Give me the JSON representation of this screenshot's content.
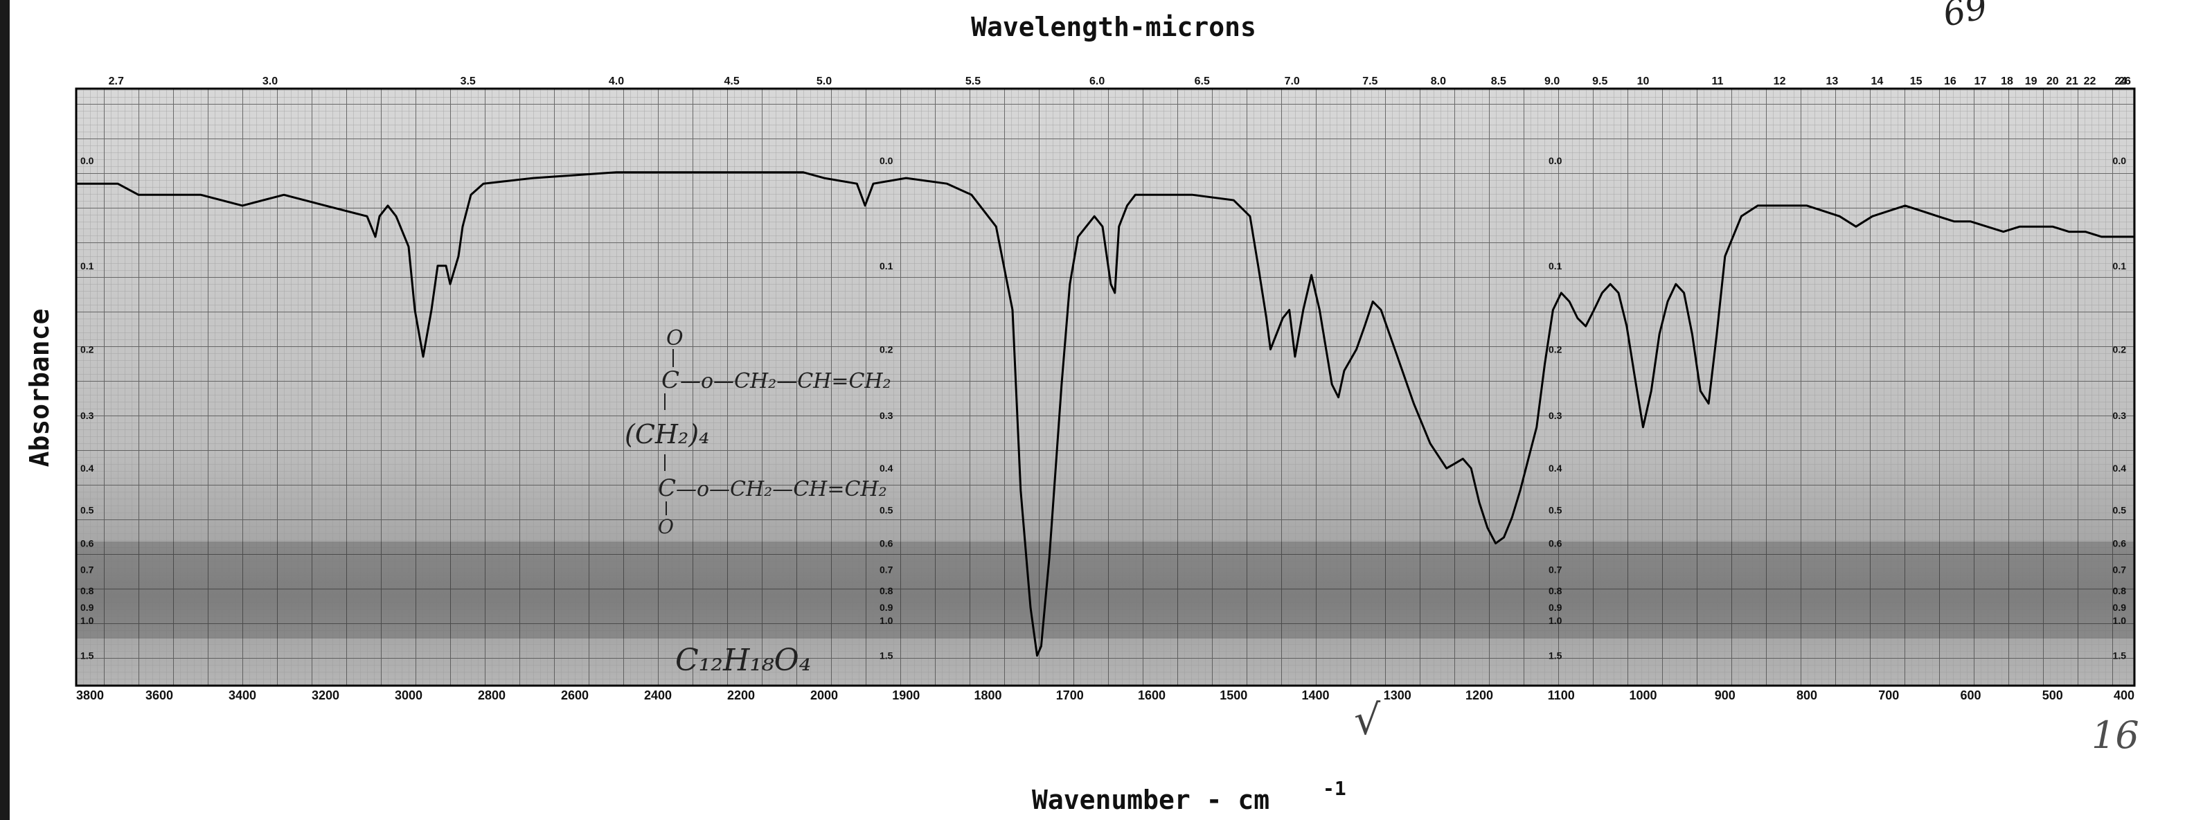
{
  "chart_data": {
    "type": "line",
    "title": "Wavelength-microns",
    "xlabel": "Wavenumber - cm",
    "xlabel_superscript": "-1",
    "ylabel": "Absorbance",
    "xlim": [
      3800,
      400
    ],
    "ylim": [
      0.0,
      1.5
    ],
    "grid": true,
    "bottom_ticks": [
      3800,
      3600,
      3400,
      3200,
      3000,
      2800,
      2600,
      2400,
      2200,
      2000,
      1900,
      1800,
      1700,
      1600,
      1500,
      1400,
      1300,
      1200,
      1100,
      1000,
      900,
      800,
      700,
      600,
      500,
      400
    ],
    "bottom_tick_labels": [
      "3800",
      "3600",
      "3400",
      "3200",
      "3000",
      "2800",
      "2600",
      "2400",
      "2200",
      "2000",
      "1900",
      "1800",
      "1700",
      "1600",
      "1500",
      "1400",
      "1300",
      "1200",
      "1100",
      "1000",
      "900",
      "800",
      "700",
      "600",
      "500",
      "400"
    ],
    "top_ticks": [
      "2.7",
      "3.0",
      "3.5",
      "4.0",
      "4.5",
      "5.0",
      "5.5",
      "6.0",
      "6.5",
      "7.0",
      "7.5",
      "8.0",
      "8.5",
      "9.0",
      "9.5",
      "10",
      "11",
      "12",
      "13",
      "14",
      "15",
      "16",
      "17",
      "18",
      "19",
      "20",
      "21",
      "22",
      "24",
      "26"
    ],
    "absorbance_ticks": [
      "0.0",
      "0.1",
      "0.2",
      "0.3",
      "0.4",
      "0.5",
      "0.6",
      "0.7",
      "0.8",
      "0.9",
      "1.0",
      "1.5"
    ],
    "absorbance_tick_values": [
      0.0,
      0.1,
      0.2,
      0.3,
      0.4,
      0.5,
      0.6,
      0.7,
      0.8,
      0.9,
      1.0,
      1.5
    ],
    "series": [
      {
        "x": [
          3800,
          3700,
          3650,
          3500,
          3400,
          3300,
          3200,
          3100,
          3080,
          3070,
          3050,
          3030,
          3000,
          2985,
          2965,
          2945,
          2930,
          2910,
          2900,
          2880,
          2870,
          2850,
          2820,
          2700,
          2500,
          2200,
          2050,
          2000,
          1960,
          1950,
          1940,
          1900,
          1850,
          1820,
          1790,
          1770,
          1760,
          1748,
          1740,
          1735,
          1725,
          1710,
          1700,
          1690,
          1670,
          1660,
          1650,
          1645,
          1640,
          1630,
          1620,
          1600,
          1550,
          1500,
          1480,
          1470,
          1460,
          1455,
          1440,
          1432,
          1425,
          1415,
          1405,
          1395,
          1380,
          1372,
          1365,
          1350,
          1340,
          1330,
          1320,
          1300,
          1280,
          1260,
          1240,
          1230,
          1220,
          1210,
          1200,
          1190,
          1180,
          1170,
          1160,
          1150,
          1140,
          1130,
          1120,
          1110,
          1100,
          1090,
          1080,
          1070,
          1060,
          1050,
          1040,
          1030,
          1020,
          1010,
          1000,
          990,
          980,
          970,
          960,
          950,
          940,
          930,
          920,
          910,
          900,
          880,
          860,
          840,
          820,
          800,
          780,
          760,
          740,
          720,
          700,
          680,
          660,
          640,
          620,
          600,
          580,
          560,
          540,
          520,
          500,
          480,
          460,
          440,
          420,
          400
        ],
        "y": [
          0.02,
          0.02,
          0.03,
          0.03,
          0.04,
          0.03,
          0.04,
          0.05,
          0.07,
          0.05,
          0.04,
          0.05,
          0.08,
          0.15,
          0.21,
          0.15,
          0.1,
          0.1,
          0.12,
          0.09,
          0.06,
          0.03,
          0.02,
          0.015,
          0.01,
          0.01,
          0.01,
          0.015,
          0.02,
          0.04,
          0.02,
          0.015,
          0.02,
          0.03,
          0.06,
          0.15,
          0.45,
          0.9,
          1.5,
          1.3,
          0.65,
          0.25,
          0.12,
          0.07,
          0.05,
          0.06,
          0.12,
          0.13,
          0.06,
          0.04,
          0.03,
          0.03,
          0.03,
          0.035,
          0.05,
          0.1,
          0.16,
          0.2,
          0.16,
          0.15,
          0.21,
          0.15,
          0.11,
          0.15,
          0.25,
          0.27,
          0.23,
          0.2,
          0.17,
          0.14,
          0.15,
          0.21,
          0.28,
          0.35,
          0.4,
          0.39,
          0.38,
          0.4,
          0.48,
          0.55,
          0.6,
          0.58,
          0.52,
          0.45,
          0.38,
          0.32,
          0.22,
          0.15,
          0.13,
          0.14,
          0.16,
          0.17,
          0.15,
          0.13,
          0.12,
          0.13,
          0.17,
          0.24,
          0.32,
          0.26,
          0.18,
          0.14,
          0.12,
          0.13,
          0.18,
          0.26,
          0.28,
          0.18,
          0.09,
          0.05,
          0.04,
          0.04,
          0.04,
          0.04,
          0.045,
          0.05,
          0.06,
          0.05,
          0.045,
          0.04,
          0.045,
          0.05,
          0.055,
          0.055,
          0.06,
          0.065,
          0.06,
          0.06,
          0.06,
          0.065,
          0.065,
          0.07,
          0.07,
          0.07
        ]
      }
    ]
  },
  "annotations": {
    "structure_line1": "C",
    "structure_line1b": "—o—CH₂—CH=CH₂",
    "structure_carbonyl_top": "O",
    "structure_line2": "(CH₂)₄",
    "structure_line3": "C",
    "structure_line3b": "—o—CH₂—CH=CH₂",
    "structure_carbonyl_bottom": "O",
    "formula": "C₁₂H₁₈O₄",
    "top_right": "69",
    "bottom_right": "16",
    "checkmark": "√"
  }
}
